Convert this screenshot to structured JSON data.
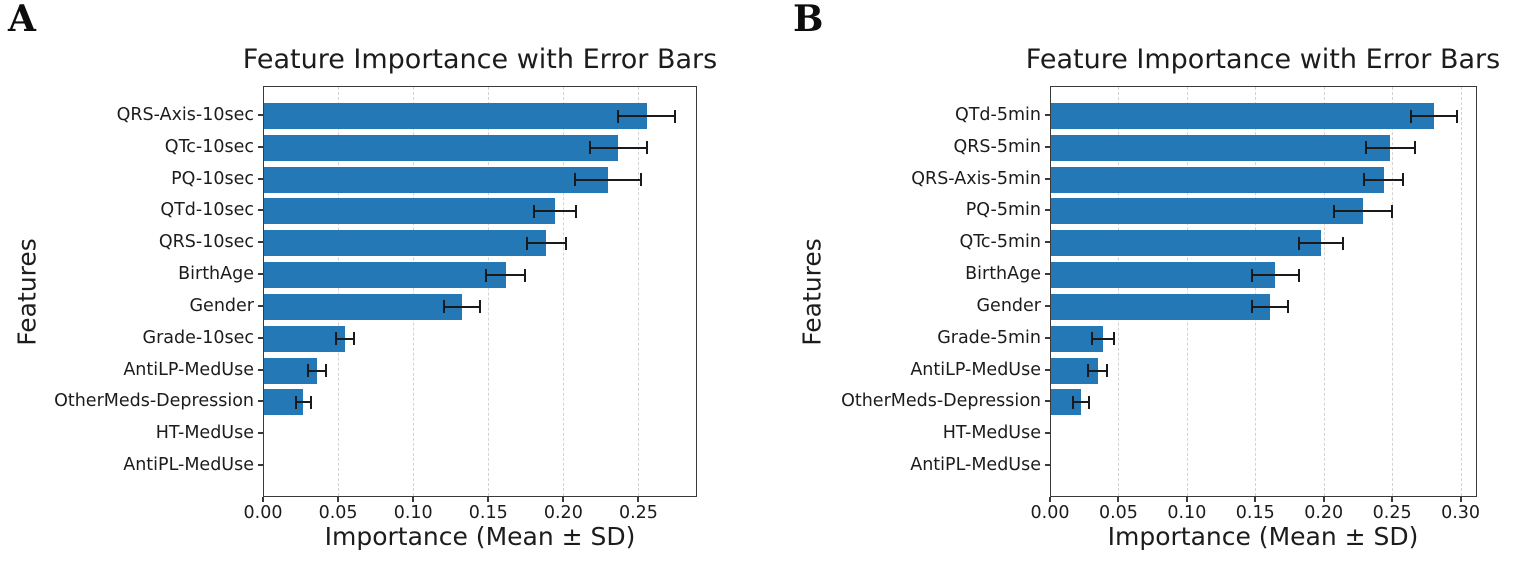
{
  "figure": {
    "panels": [
      {
        "letter": "A"
      },
      {
        "letter": "B"
      }
    ]
  },
  "chart_data": [
    {
      "type": "bar",
      "orientation": "horizontal",
      "panel_letter": "A",
      "title": "Feature Importance with Error Bars",
      "xlabel": "Importance (Mean ± SD)",
      "ylabel": "Features",
      "categories": [
        "QRS-Axis-10sec",
        "QTc-10sec",
        "PQ-10sec",
        "QTd-10sec",
        "QRS-10sec",
        "BirthAge",
        "Gender",
        "Grade-10sec",
        "AntiLP-MedUse",
        "OtherMeds-Depression",
        "HT-MedUse",
        "AntiPL-MedUse"
      ],
      "values": [
        0.255,
        0.236,
        0.229,
        0.194,
        0.188,
        0.161,
        0.132,
        0.054,
        0.035,
        0.026,
        0.0,
        0.0
      ],
      "errors": [
        0.019,
        0.019,
        0.022,
        0.014,
        0.013,
        0.013,
        0.012,
        0.006,
        0.006,
        0.005,
        0.0,
        0.0
      ],
      "xtick_labels": [
        "0.00",
        "0.05",
        "0.10",
        "0.15",
        "0.20",
        "0.25"
      ],
      "xlim": [
        0,
        0.289
      ],
      "grid": "vertical-dashed",
      "legend": "none",
      "bar_color": "#2478b5",
      "error_color": "#1a1a1a"
    },
    {
      "type": "bar",
      "orientation": "horizontal",
      "panel_letter": "B",
      "title": "Feature Importance with Error Bars",
      "xlabel": "Importance (Mean ± SD)",
      "ylabel": "Features",
      "categories": [
        "QTd-5min",
        "QRS-5min",
        "QRS-Axis-5min",
        "PQ-5min",
        "QTc-5min",
        "BirthAge",
        "Gender",
        "Grade-5min",
        "AntiLP-MedUse",
        "OtherMeds-Depression",
        "HT-MedUse",
        "AntiPL-MedUse"
      ],
      "values": [
        0.28,
        0.248,
        0.243,
        0.228,
        0.197,
        0.164,
        0.16,
        0.038,
        0.034,
        0.022,
        0.0,
        0.0
      ],
      "errors": [
        0.017,
        0.018,
        0.014,
        0.021,
        0.016,
        0.017,
        0.013,
        0.008,
        0.007,
        0.006,
        0.0,
        0.0
      ],
      "xtick_labels": [
        "0.00",
        "0.05",
        "0.10",
        "0.15",
        "0.20",
        "0.25",
        "0.30"
      ],
      "xlim": [
        0,
        0.312
      ],
      "grid": "vertical-dashed",
      "legend": "none",
      "bar_color": "#2478b5",
      "error_color": "#1a1a1a"
    }
  ]
}
